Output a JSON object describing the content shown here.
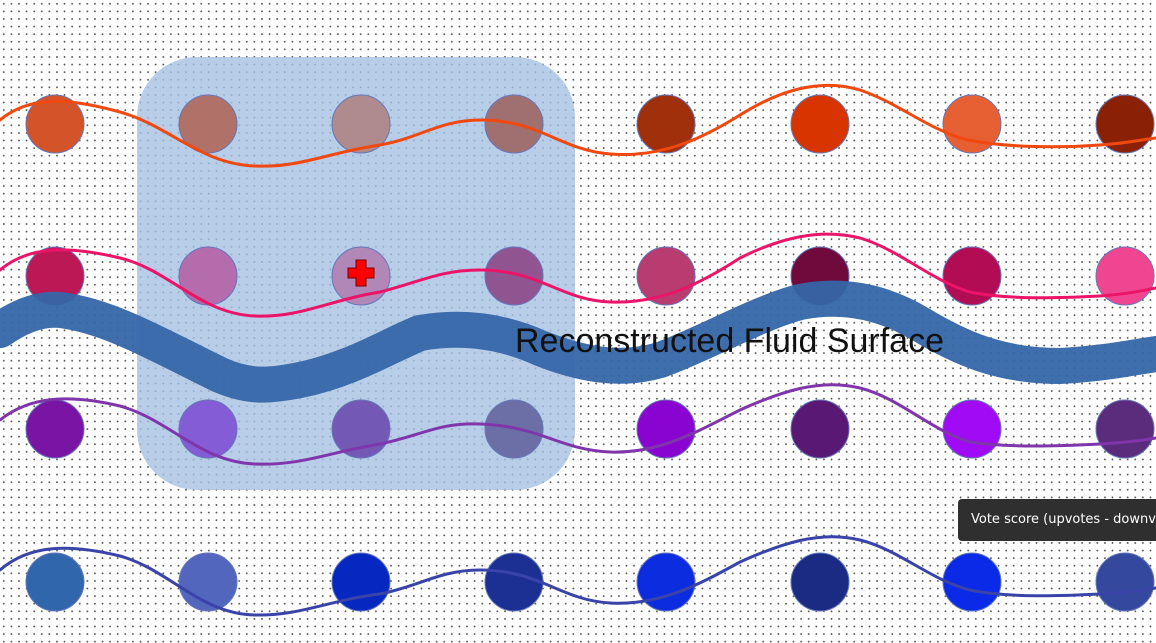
{
  "canvas": {
    "title": "Reconstructed Fluid Surface",
    "cursor_icon": "crosshair-plus-icon",
    "colors": {
      "background": "#ffffff",
      "grid_dot": "#555555",
      "selection_fill": "#a5c0e2",
      "surface_band": "#3566a8",
      "cursor": "#ff0000"
    },
    "rows": [
      {
        "line_color": "#f0480f",
        "node_colors": [
          "#d4542a",
          "#b07168",
          "#b08b8d",
          "#a07070",
          "#a0300c",
          "#d83400",
          "#e66034",
          "#8a2104"
        ]
      },
      {
        "line_color": "#ec1469",
        "node_colors": [
          "#bc1855",
          "#b46cac",
          "#b087b6",
          "#905490",
          "#b83c70",
          "#70093c",
          "#b20c54",
          "#f04590"
        ]
      },
      {
        "line_color": "#7f36aa",
        "node_colors": [
          "#7a14a5",
          "#845cd6",
          "#7458b6",
          "#6c6ea6",
          "#8904d0",
          "#581874",
          "#a00af4",
          "#5c2c7c"
        ]
      },
      {
        "line_color": "#3a44a8",
        "node_colors": [
          "#3066ac",
          "#5266be",
          "#0628c0",
          "#1c3094",
          "#0c2ce0",
          "#1b2b84",
          "#0a2ae8",
          "#34489e"
        ]
      }
    ]
  },
  "tooltip": {
    "text": "Vote score (upvotes - downvotes)"
  }
}
